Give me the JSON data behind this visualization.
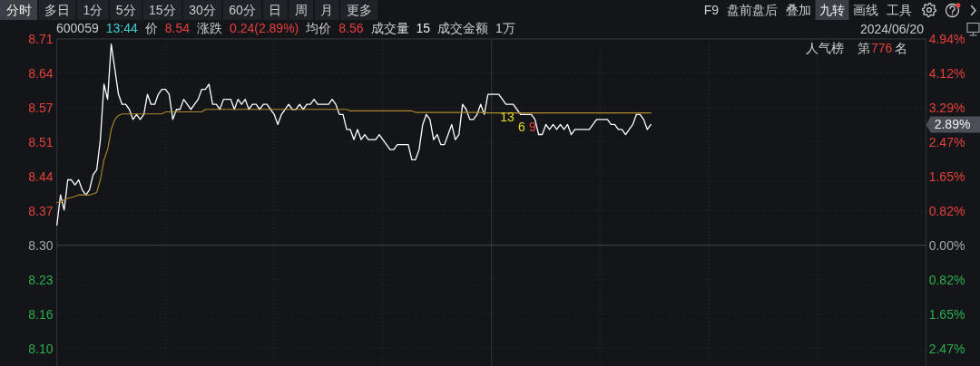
{
  "chart_data": {
    "type": "line",
    "categories": [
      null,
      null,
      null,
      null,
      null,
      null,
      null,
      null,
      null,
      null,
      null,
      null,
      null,
      null,
      null,
      null,
      null,
      null,
      null,
      null,
      null,
      null,
      null,
      null,
      null,
      null,
      null,
      null,
      null,
      null,
      null,
      null,
      null,
      null,
      null,
      null,
      null,
      null,
      null,
      null,
      null,
      null,
      null,
      null,
      null,
      null,
      null,
      null,
      null,
      null,
      null,
      null,
      null,
      null,
      null,
      null,
      null,
      null,
      null,
      null,
      null,
      null,
      null,
      null,
      null,
      null,
      null,
      null,
      null,
      null,
      null,
      null,
      null,
      null,
      null,
      null,
      null,
      null,
      null,
      null,
      null,
      null,
      null,
      null,
      null,
      null,
      null,
      null,
      null,
      null,
      null,
      null,
      null,
      null,
      null,
      null,
      null,
      null,
      null,
      null,
      null,
      null,
      null,
      null,
      null,
      null,
      null,
      null,
      null,
      null,
      null,
      null,
      null,
      null,
      null,
      null,
      null,
      null,
      null,
      null,
      null,
      null,
      null,
      null,
      null,
      null,
      null,
      null,
      null,
      null,
      null,
      null,
      null,
      null,
      null,
      null,
      null,
      null,
      null,
      null,
      null,
      null,
      null,
      null,
      null,
      null,
      null,
      null,
      null,
      null,
      null,
      null,
      null,
      null,
      null,
      null,
      null,
      null,
      null,
      null,
      null,
      null,
      null,
      null,
      null,
      null,
      null,
      null,
      null,
      null,
      null,
      null,
      null,
      null,
      null,
      null,
      null,
      null,
      null,
      null,
      null,
      null,
      null,
      null,
      null,
      null,
      null,
      null,
      null,
      null,
      null,
      null,
      null,
      null,
      null,
      null,
      null,
      null,
      null,
      null,
      null,
      null,
      null,
      null,
      null,
      null,
      null,
      null,
      null,
      null,
      null,
      null,
      null,
      null,
      null,
      null,
      null,
      null,
      null,
      null,
      null,
      null,
      null,
      null,
      null,
      null,
      null,
      null,
      null,
      null,
      null,
      null,
      null,
      null,
      null,
      null,
      null,
      null,
      null,
      null,
      null
    ],
    "series": [
      {
        "color": "#ffffff",
        "values": [
          8.34,
          8.4,
          8.37,
          8.43,
          8.43,
          8.42,
          8.43,
          8.41,
          8.4,
          8.41,
          8.44,
          8.45,
          8.51,
          8.62,
          8.59,
          8.7,
          8.65,
          8.6,
          8.58,
          8.58,
          8.57,
          8.55,
          8.56,
          8.55,
          8.56,
          8.6,
          8.58,
          8.58,
          8.6,
          8.61,
          8.61,
          8.6,
          8.55,
          8.57,
          8.57,
          8.59,
          8.58,
          8.57,
          8.58,
          8.59,
          8.61,
          8.61,
          8.62,
          8.58,
          8.58,
          8.57,
          8.59,
          8.59,
          8.59,
          8.57,
          8.59,
          8.58,
          8.59,
          8.57,
          8.58,
          8.58,
          8.57,
          8.58,
          8.58,
          8.57,
          8.56,
          8.54,
          8.56,
          8.57,
          8.58,
          8.57,
          8.57,
          8.58,
          8.57,
          8.58,
          8.58,
          8.59,
          8.58,
          8.58,
          8.58,
          8.58,
          8.59,
          8.58,
          8.56,
          8.56,
          8.53,
          8.53,
          8.51,
          8.53,
          8.51,
          8.52,
          8.51,
          8.51,
          8.51,
          8.52,
          8.51,
          8.5,
          8.49,
          8.49,
          8.5,
          8.5,
          8.5,
          8.5,
          8.47,
          8.47,
          8.49,
          8.54,
          8.56,
          8.55,
          8.51,
          8.52,
          8.5,
          8.5,
          8.52,
          8.54,
          8.51,
          8.52,
          8.58,
          8.57,
          8.55,
          8.55,
          8.56,
          8.58,
          8.56,
          8.6,
          8.6,
          8.6,
          8.6,
          8.59,
          8.58,
          8.58,
          8.58,
          8.57,
          8.56,
          8.56,
          8.56,
          8.56,
          8.55,
          8.52,
          8.52,
          8.54,
          8.53,
          8.54,
          8.53,
          8.54,
          8.53,
          8.54,
          8.52,
          8.53,
          8.53,
          8.53,
          8.53,
          8.53,
          8.54,
          8.55,
          8.55,
          8.55,
          8.55,
          8.54,
          8.54,
          8.53,
          8.53,
          8.52,
          8.53,
          8.54,
          8.56,
          8.56,
          8.55,
          8.53,
          8.54,
          null,
          null,
          null,
          null,
          null,
          null,
          null,
          null,
          null,
          null,
          null,
          null,
          null,
          null,
          null,
          null,
          null,
          null,
          null,
          null,
          null,
          null,
          null,
          null,
          null,
          null,
          null,
          null,
          null,
          null,
          null,
          null,
          null,
          null,
          null,
          null,
          null,
          null,
          null,
          null,
          null,
          null,
          null,
          null,
          null,
          null,
          null,
          null,
          null,
          null,
          null,
          null,
          null,
          null,
          null,
          null,
          null,
          null,
          null,
          null,
          null,
          null,
          null,
          null,
          null,
          null,
          null,
          null,
          null,
          null,
          null,
          null,
          null,
          null,
          null,
          null
        ]
      },
      {
        "color": "#b08a2c",
        "values": [
          8.385,
          8.385,
          8.39,
          8.393,
          8.395,
          8.397,
          8.4,
          8.4,
          8.4,
          8.4,
          8.402,
          8.405,
          8.43,
          8.47,
          8.49,
          8.53,
          8.55,
          8.558,
          8.561,
          8.561,
          8.561,
          8.561,
          8.561,
          8.561,
          8.561,
          8.561,
          8.561,
          8.561,
          8.561,
          8.561,
          8.565,
          8.565,
          8.565,
          8.565,
          8.565,
          8.565,
          8.565,
          8.565,
          8.565,
          8.565,
          8.565,
          8.57,
          8.57,
          8.57,
          8.57,
          8.57,
          8.57,
          8.57,
          8.57,
          8.57,
          8.57,
          8.57,
          8.57,
          8.57,
          8.57,
          8.57,
          8.57,
          8.57,
          8.57,
          8.57,
          8.57,
          8.57,
          8.57,
          8.57,
          8.57,
          8.57,
          8.57,
          8.57,
          8.57,
          8.57,
          8.57,
          8.57,
          8.57,
          8.57,
          8.57,
          8.57,
          8.57,
          8.57,
          8.57,
          8.57,
          8.57,
          8.567,
          8.567,
          8.567,
          8.567,
          8.567,
          8.567,
          8.567,
          8.567,
          8.567,
          8.567,
          8.567,
          8.567,
          8.567,
          8.567,
          8.567,
          8.567,
          8.567,
          8.567,
          8.564,
          8.564,
          8.564,
          8.564,
          8.564,
          8.564,
          8.564,
          8.564,
          8.564,
          8.564,
          8.564,
          8.564,
          8.564,
          8.564,
          8.564,
          8.564,
          8.564,
          8.564,
          8.564,
          8.564,
          8.563,
          8.563,
          8.563,
          8.563,
          8.563,
          8.563,
          8.563,
          8.563,
          8.563,
          8.563,
          8.563,
          8.563,
          8.563,
          8.563,
          8.563,
          8.563,
          8.563,
          8.563,
          8.563,
          8.563,
          8.563,
          8.563,
          8.563,
          8.563,
          8.563,
          8.563,
          8.563,
          8.563,
          8.563,
          8.563,
          8.563,
          8.563,
          8.563,
          8.563,
          8.563,
          8.563,
          8.563,
          8.563,
          8.563,
          8.563,
          8.563,
          8.563,
          8.563,
          8.563,
          8.563,
          8.563,
          null,
          null,
          null,
          null,
          null,
          null,
          null,
          null,
          null,
          null,
          null,
          null,
          null,
          null,
          null,
          null,
          null,
          null,
          null,
          null,
          null,
          null,
          null,
          null,
          null,
          null,
          null,
          null,
          null,
          null,
          null,
          null,
          null,
          null,
          null,
          null,
          null,
          null,
          null,
          null,
          null,
          null,
          null,
          null,
          null,
          null,
          null,
          null,
          null,
          null,
          null,
          null,
          null,
          null,
          null,
          null,
          null,
          null,
          null,
          null,
          null,
          null,
          null,
          null,
          null,
          null,
          null,
          null,
          null,
          null,
          null,
          null,
          null,
          null,
          null,
          null
        ]
      }
    ],
    "ylim": [
      8.06,
      8.71
    ],
    "yticks": [
      8.71,
      {
        "value": 8.6417,
        "label": "8.64"
      },
      {
        "value": 8.5733,
        "label": "8.57"
      },
      {
        "value": 8.505,
        "label": "8.51"
      },
      {
        "value": 8.4367,
        "label": "8.44"
      },
      {
        "value": 8.3683,
        "label": "8.37"
      },
      {
        "value": 8.3,
        "label": "8.30"
      },
      {
        "value": 8.2317,
        "label": "8.23"
      },
      {
        "value": 8.1633,
        "label": "8.16"
      },
      {
        "value": 8.095,
        "label": "8.10"
      }
    ],
    "y2lim": [
      -2.89,
      4.94
    ],
    "y2ticks": [
      {
        "value": 4.94,
        "label": "4.94%"
      },
      {
        "value": 4.117,
        "label": "4.12%"
      },
      {
        "value": 3.293,
        "label": "3.29%"
      },
      {
        "value": 2.47,
        "label": "2.47%"
      },
      {
        "value": 1.647,
        "label": "1.65%"
      },
      {
        "value": 0.823,
        "label": "0.82%"
      },
      {
        "value": 0,
        "label": "0.00%"
      },
      {
        "value": -0.823,
        "label": "0.82%"
      },
      {
        "value": -1.647,
        "label": "1.65%"
      },
      {
        "value": -2.47,
        "label": "2.47%"
      }
    ],
    "grid": true,
    "ref_lines": [
      {
        "axis": "y",
        "value": 8.3,
        "color": "#45484f"
      }
    ],
    "annotations": [
      "分时",
      "多日",
      "1分",
      "5分",
      "15分",
      "30分",
      "60分",
      "日",
      "周",
      "月",
      "更多",
      "F9",
      "盘前盘后",
      "叠加",
      "九转",
      "画线",
      "工具",
      "2024/06/20",
      "600059",
      "13:44",
      "价",
      "8.54",
      "涨跌",
      "0.24(2.89%)",
      "均价",
      "8.56",
      "成交量",
      "15",
      "成交金额",
      "1万",
      "人气榜",
      "第",
      "776",
      "名",
      "13",
      "6",
      "9",
      "2.89%"
    ]
  }
}
